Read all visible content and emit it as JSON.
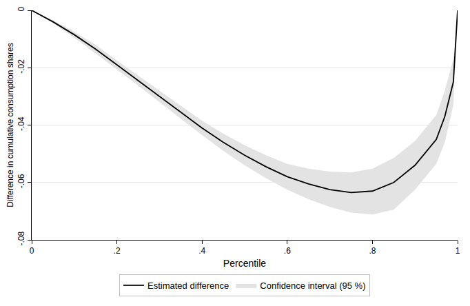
{
  "chart_data": {
    "type": "line",
    "x_label": "Percentile",
    "y_label": "Difference in cumulative consumption shares",
    "x": [
      0,
      0.05,
      0.1,
      0.15,
      0.2,
      0.25,
      0.3,
      0.35,
      0.4,
      0.45,
      0.5,
      0.55,
      0.6,
      0.65,
      0.7,
      0.75,
      0.8,
      0.85,
      0.9,
      0.95,
      0.97,
      0.99,
      1
    ],
    "series": [
      {
        "name": "Estimated difference",
        "color": "#000000",
        "line_style": "solid",
        "values": [
          0,
          -0.004,
          -0.0085,
          -0.0135,
          -0.019,
          -0.0245,
          -0.03,
          -0.0355,
          -0.041,
          -0.046,
          -0.0505,
          -0.0545,
          -0.058,
          -0.0605,
          -0.0625,
          -0.0635,
          -0.063,
          -0.06,
          -0.054,
          -0.045,
          -0.037,
          -0.025,
          0
        ]
      }
    ],
    "confidence_interval": {
      "name": "Confidence interval (95 %)",
      "color": "#e3e3e3",
      "lower": [
        0,
        -0.0045,
        -0.0095,
        -0.015,
        -0.0205,
        -0.0262,
        -0.032,
        -0.0378,
        -0.0435,
        -0.049,
        -0.054,
        -0.0585,
        -0.0625,
        -0.0658,
        -0.0685,
        -0.0705,
        -0.0712,
        -0.0695,
        -0.0625,
        -0.0535,
        -0.046,
        -0.033,
        0
      ],
      "upper": [
        0,
        -0.0035,
        -0.0075,
        -0.012,
        -0.0175,
        -0.0228,
        -0.028,
        -0.0332,
        -0.0385,
        -0.043,
        -0.047,
        -0.0505,
        -0.0535,
        -0.0552,
        -0.0562,
        -0.0565,
        -0.0552,
        -0.0515,
        -0.0455,
        -0.0365,
        -0.028,
        -0.017,
        0
      ]
    },
    "xlim": [
      0,
      1
    ],
    "xticks": [
      0,
      {
        "value": 0.2,
        "label": ".2"
      },
      {
        "value": 0.4,
        "label": ".4"
      },
      {
        "value": 0.6,
        "label": ".6"
      },
      {
        "value": 0.8,
        "label": ".8"
      },
      1
    ],
    "ylim": [
      -0.08,
      0
    ],
    "yticks": [
      {
        "value": -0.08,
        "label": "-.08"
      },
      {
        "value": -0.06,
        "label": "-.06"
      },
      {
        "value": -0.04,
        "label": "-.04"
      },
      {
        "value": -0.02,
        "label": "-.02"
      },
      0
    ],
    "grid": true,
    "legend": "bottom"
  }
}
